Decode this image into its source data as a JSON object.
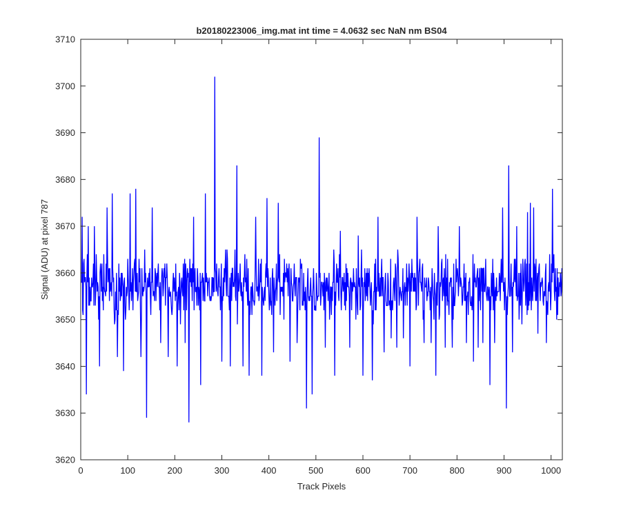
{
  "chart_data": {
    "type": "line",
    "title": "b20180223006_img.mat int time = 4.0632 sec  NaN nm BS04",
    "xlabel": "Track Pixels",
    "ylabel": "Signal (ADU) at pixel 787",
    "xlim": [
      0,
      1024
    ],
    "ylim": [
      3620,
      3710
    ],
    "xticks": [
      0,
      100,
      200,
      300,
      400,
      500,
      600,
      700,
      800,
      900,
      1000
    ],
    "yticks": [
      3620,
      3630,
      3640,
      3650,
      3660,
      3670,
      3680,
      3690,
      3700,
      3710
    ],
    "grid": false,
    "legend": "none",
    "line_color": "#0000ff",
    "series": [
      {
        "spikes": [
          {
            "x": 3,
            "y": 3672
          },
          {
            "x": 12,
            "y": 3634
          },
          {
            "x": 16,
            "y": 3670
          },
          {
            "x": 29,
            "y": 3670
          },
          {
            "x": 40,
            "y": 3640
          },
          {
            "x": 56,
            "y": 3674
          },
          {
            "x": 67,
            "y": 3677
          },
          {
            "x": 78,
            "y": 3642
          },
          {
            "x": 91,
            "y": 3639
          },
          {
            "x": 105,
            "y": 3677
          },
          {
            "x": 117,
            "y": 3678
          },
          {
            "x": 128,
            "y": 3642
          },
          {
            "x": 140,
            "y": 3629
          },
          {
            "x": 152,
            "y": 3674
          },
          {
            "x": 170,
            "y": 3645
          },
          {
            "x": 186,
            "y": 3642
          },
          {
            "x": 205,
            "y": 3640
          },
          {
            "x": 222,
            "y": 3645
          },
          {
            "x": 230,
            "y": 3628
          },
          {
            "x": 240,
            "y": 3672
          },
          {
            "x": 255,
            "y": 3636
          },
          {
            "x": 265,
            "y": 3677
          },
          {
            "x": 285,
            "y": 3702
          },
          {
            "x": 300,
            "y": 3641
          },
          {
            "x": 318,
            "y": 3640
          },
          {
            "x": 332,
            "y": 3683
          },
          {
            "x": 345,
            "y": 3640
          },
          {
            "x": 358,
            "y": 3638
          },
          {
            "x": 372,
            "y": 3672
          },
          {
            "x": 385,
            "y": 3638
          },
          {
            "x": 396,
            "y": 3676
          },
          {
            "x": 410,
            "y": 3643
          },
          {
            "x": 420,
            "y": 3675
          },
          {
            "x": 432,
            "y": 3650
          },
          {
            "x": 445,
            "y": 3641
          },
          {
            "x": 460,
            "y": 3645
          },
          {
            "x": 480,
            "y": 3631
          },
          {
            "x": 492,
            "y": 3634
          },
          {
            "x": 507,
            "y": 3689
          },
          {
            "x": 520,
            "y": 3644
          },
          {
            "x": 540,
            "y": 3638
          },
          {
            "x": 552,
            "y": 3669
          },
          {
            "x": 572,
            "y": 3644
          },
          {
            "x": 590,
            "y": 3668
          },
          {
            "x": 600,
            "y": 3638
          },
          {
            "x": 620,
            "y": 3637
          },
          {
            "x": 632,
            "y": 3672
          },
          {
            "x": 645,
            "y": 3643
          },
          {
            "x": 660,
            "y": 3646
          },
          {
            "x": 672,
            "y": 3644
          },
          {
            "x": 686,
            "y": 3646
          },
          {
            "x": 700,
            "y": 3640
          },
          {
            "x": 715,
            "y": 3672
          },
          {
            "x": 730,
            "y": 3645
          },
          {
            "x": 745,
            "y": 3645
          },
          {
            "x": 755,
            "y": 3638
          },
          {
            "x": 760,
            "y": 3670
          },
          {
            "x": 775,
            "y": 3644
          },
          {
            "x": 790,
            "y": 3644
          },
          {
            "x": 805,
            "y": 3670
          },
          {
            "x": 820,
            "y": 3645
          },
          {
            "x": 835,
            "y": 3641
          },
          {
            "x": 845,
            "y": 3644
          },
          {
            "x": 855,
            "y": 3645
          },
          {
            "x": 870,
            "y": 3636
          },
          {
            "x": 880,
            "y": 3645
          },
          {
            "x": 897,
            "y": 3674
          },
          {
            "x": 905,
            "y": 3631
          },
          {
            "x": 910,
            "y": 3683
          },
          {
            "x": 918,
            "y": 3643
          },
          {
            "x": 927,
            "y": 3670
          },
          {
            "x": 938,
            "y": 3649
          },
          {
            "x": 950,
            "y": 3673
          },
          {
            "x": 956,
            "y": 3675
          },
          {
            "x": 963,
            "y": 3674
          },
          {
            "x": 972,
            "y": 3647
          },
          {
            "x": 990,
            "y": 3645
          },
          {
            "x": 1003,
            "y": 3678
          },
          {
            "x": 1012,
            "y": 3650
          }
        ],
        "baseline": 3657,
        "noise_amplitude": 7
      }
    ]
  }
}
